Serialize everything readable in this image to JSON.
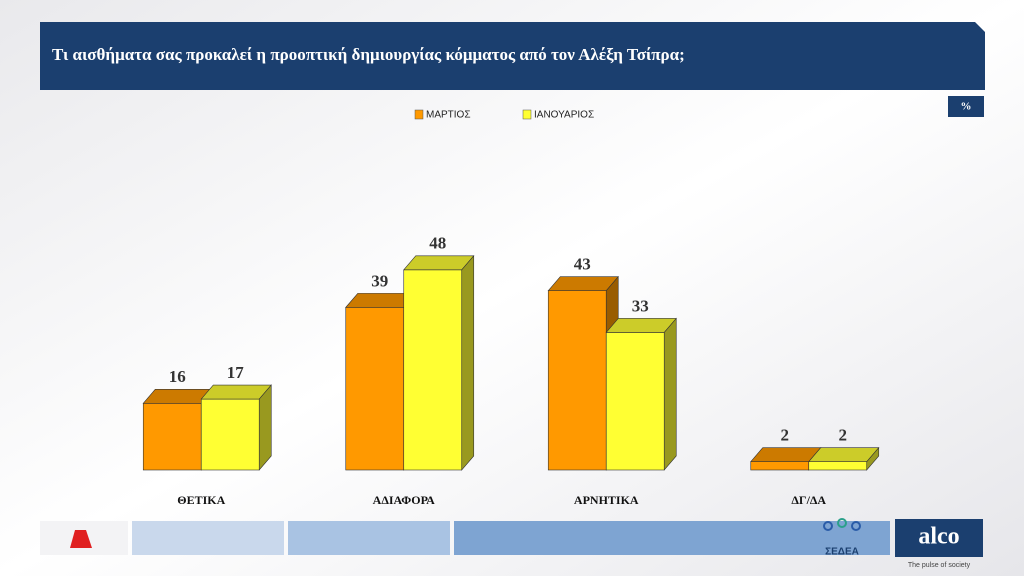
{
  "chart_data": {
    "type": "bar3d",
    "title": "Τι αισθήματα σας προκαλεί η προοπτική δημιουργίας κόμματος από τον Αλέξη Τσίπρα;",
    "unit_badge": "%",
    "categories": [
      "ΘΕΤΙΚΑ",
      "ΑΔΙΑΦΟΡΑ",
      "ΑΡΝΗΤΙΚΑ",
      "ΔΓ/ΔΑ"
    ],
    "series": [
      {
        "name": "ΜΑΡΤΙΟΣ",
        "color": "#ff9900",
        "values": [
          16,
          39,
          43,
          2
        ]
      },
      {
        "name": "ΙΑΝΟΥΑΡΙΟΣ",
        "color": "#ffff33",
        "values": [
          17,
          48,
          33,
          2
        ]
      }
    ]
  },
  "footer": {
    "brand": "alco",
    "tagline": "The pulse of society",
    "partner": "ΣΕΔΕΑ"
  }
}
